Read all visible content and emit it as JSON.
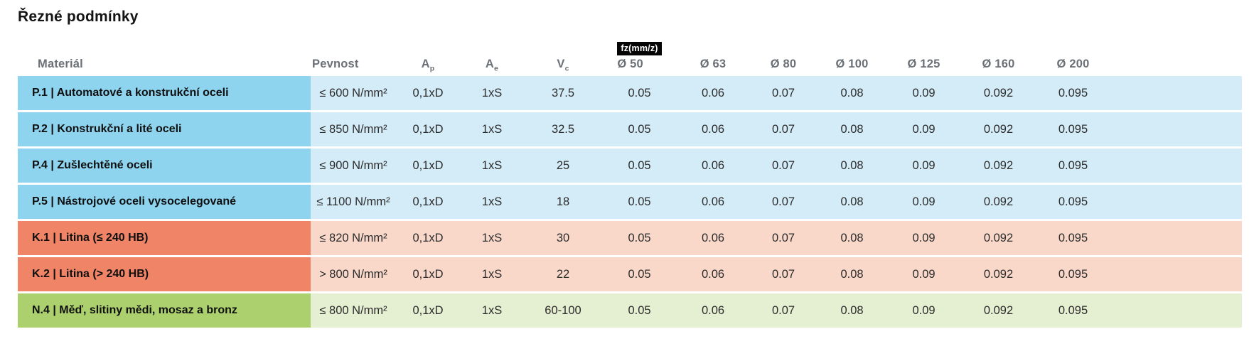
{
  "title": "Řezné podmínky",
  "table": {
    "columns": {
      "material": "Materiál",
      "pevnost": "Pevnost",
      "ap": {
        "base": "A",
        "sub": "p"
      },
      "ae": {
        "base": "A",
        "sub": "e"
      },
      "vc": {
        "base": "V",
        "sub": "c"
      },
      "fz_badge": "fz(mm/z)",
      "diameters": [
        "Ø 50",
        "Ø 63",
        "Ø 80",
        "Ø 100",
        "Ø 125",
        "Ø 160",
        "Ø 200"
      ]
    },
    "rows": [
      {
        "group": "P",
        "material": "P.1 | Automatové a konstrukční oceli",
        "pevnost": "≤ 600 N/mm²",
        "ap": "0,1xD",
        "ae": "1xS",
        "vc": "37.5",
        "fz": [
          "0.05",
          "0.06",
          "0.07",
          "0.08",
          "0.09",
          "0.092",
          "0.095"
        ]
      },
      {
        "group": "P",
        "material": "P.2 | Konstrukční a lité oceli",
        "pevnost": "≤ 850 N/mm²",
        "ap": "0,1xD",
        "ae": "1xS",
        "vc": "32.5",
        "fz": [
          "0.05",
          "0.06",
          "0.07",
          "0.08",
          "0.09",
          "0.092",
          "0.095"
        ]
      },
      {
        "group": "P",
        "material": "P.4 | Zušlechtěné oceli",
        "pevnost": "≤ 900 N/mm²",
        "ap": "0,1xD",
        "ae": "1xS",
        "vc": "25",
        "fz": [
          "0.05",
          "0.06",
          "0.07",
          "0.08",
          "0.09",
          "0.092",
          "0.095"
        ]
      },
      {
        "group": "P",
        "material": "P.5 | Nástrojové oceli vysocelegované",
        "pevnost": "≤ 1100 N/mm²",
        "ap": "0,1xD",
        "ae": "1xS",
        "vc": "18",
        "fz": [
          "0.05",
          "0.06",
          "0.07",
          "0.08",
          "0.09",
          "0.092",
          "0.095"
        ]
      },
      {
        "group": "K",
        "material": "K.1 | Litina (≤ 240 HB)",
        "pevnost": "≤ 820 N/mm²",
        "ap": "0,1xD",
        "ae": "1xS",
        "vc": "30",
        "fz": [
          "0.05",
          "0.06",
          "0.07",
          "0.08",
          "0.09",
          "0.092",
          "0.095"
        ]
      },
      {
        "group": "K",
        "material": "K.2 | Litina (> 240 HB)",
        "pevnost": "> 800 N/mm²",
        "ap": "0,1xD",
        "ae": "1xS",
        "vc": "22",
        "fz": [
          "0.05",
          "0.06",
          "0.07",
          "0.08",
          "0.09",
          "0.092",
          "0.095"
        ]
      },
      {
        "group": "N",
        "material": "N.4 | Měď, slitiny mědi, mosaz a bronz",
        "pevnost": "≤ 800 N/mm²",
        "ap": "0,1xD",
        "ae": "1xS",
        "vc": "60-100",
        "fz": [
          "0.05",
          "0.06",
          "0.07",
          "0.08",
          "0.09",
          "0.092",
          "0.095"
        ]
      }
    ]
  },
  "colors": {
    "P": {
      "label_bg": "#8ed4ee",
      "row_bg": "#d4ecf8"
    },
    "K": {
      "label_bg": "#ef8566",
      "row_bg": "#f9d8ca"
    },
    "N": {
      "label_bg": "#abd06d",
      "row_bg": "#e5efd1"
    },
    "badge_bg": "#050505",
    "badge_text": "#ffffff",
    "header_text": "#6b7076"
  }
}
